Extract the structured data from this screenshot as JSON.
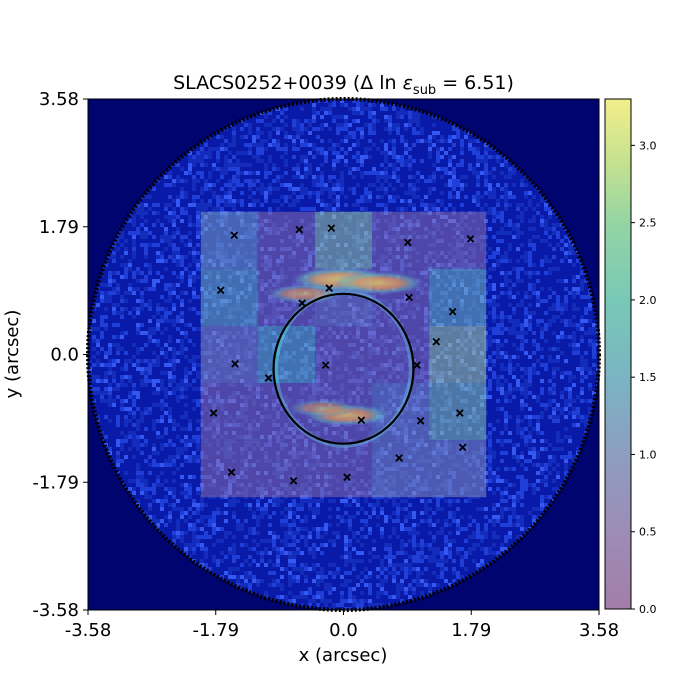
{
  "chart_data": {
    "type": "heatmap",
    "title_prefix": "SLACS0252+0039 (",
    "title_delta": "Δ",
    "title_ln": " ln ",
    "title_eps": "ε",
    "title_sub": "sub",
    "title_suffix": " =  6.51)",
    "xlabel": "x (arcsec)",
    "ylabel": "y (arcsec)",
    "xlim": [
      -3.58,
      3.58
    ],
    "ylim": [
      -3.58,
      3.58
    ],
    "x_tick_labels": [
      "-3.58",
      "-1.79",
      "0.0",
      "1.79",
      "3.58"
    ],
    "y_tick_labels": [
      "3.58",
      "1.79",
      "0.0",
      "-1.79",
      "-3.58"
    ],
    "tick_values": [
      -3.58,
      -1.79,
      0.0,
      1.79,
      3.58
    ],
    "colorbar": {
      "range": [
        0.0,
        3.3
      ],
      "tick_values": [
        0.0,
        0.5,
        1.0,
        1.5,
        2.0,
        2.5,
        3.0
      ],
      "tick_labels": [
        "0.0",
        "0.5",
        "1.0",
        "1.5",
        "2.0",
        "2.5",
        "3.0"
      ],
      "colormap": "viridis (alpha 0.5)"
    },
    "grid": {
      "x_edges": [
        -2.0,
        -1.2,
        -0.4,
        0.4,
        1.2,
        2.0
      ],
      "y_edges": [
        2.0,
        1.2,
        0.4,
        -0.4,
        -1.2,
        -2.0
      ],
      "values": [
        [
          1.3,
          0.2,
          2.7,
          0.1,
          0.1
        ],
        [
          1.8,
          0.3,
          0.7,
          0.2,
          1.9
        ],
        [
          0.8,
          2.0,
          0.2,
          0.3,
          2.8
        ],
        [
          0.3,
          0.2,
          0.2,
          0.9,
          2.4
        ],
        [
          0.2,
          0.2,
          0.2,
          0.9,
          0.9
        ]
      ]
    },
    "markers": [
      [
        -1.53,
        1.67
      ],
      [
        -0.62,
        1.75
      ],
      [
        -0.17,
        1.77
      ],
      [
        0.9,
        1.57
      ],
      [
        1.78,
        1.62
      ],
      [
        -1.72,
        0.9
      ],
      [
        -0.58,
        0.72
      ],
      [
        -0.2,
        0.93
      ],
      [
        0.92,
        0.8
      ],
      [
        1.53,
        0.6
      ],
      [
        -1.52,
        -0.13
      ],
      [
        -1.05,
        -0.33
      ],
      [
        -0.25,
        -0.15
      ],
      [
        1.3,
        0.18
      ],
      [
        1.03,
        -0.15
      ],
      [
        -1.82,
        -0.82
      ],
      [
        0.25,
        -0.92
      ],
      [
        1.08,
        -0.93
      ],
      [
        1.63,
        -0.82
      ],
      [
        1.67,
        -1.3
      ],
      [
        -1.57,
        -1.65
      ],
      [
        -0.7,
        -1.77
      ],
      [
        0.05,
        -1.72
      ],
      [
        0.78,
        -1.45
      ]
    ],
    "critical_curve": {
      "center": [
        0.0,
        -0.2
      ],
      "semi_axes": [
        0.98,
        1.05
      ]
    },
    "mask_radius": 3.58,
    "arcs": [
      {
        "x": -0.05,
        "y": 1.05,
        "brightness": 1.0
      },
      {
        "x": 0.5,
        "y": 1.0,
        "brightness": 0.9
      },
      {
        "x": -0.55,
        "y": 0.85,
        "brightness": 0.7
      },
      {
        "x": 0.05,
        "y": -0.85,
        "brightness": 0.85
      },
      {
        "x": -0.3,
        "y": -0.75,
        "brightness": 0.6
      }
    ],
    "colors": {
      "background": "#00046e",
      "noise": "#1f3ad8",
      "curve": "#000000",
      "marker": "#000000"
    }
  }
}
